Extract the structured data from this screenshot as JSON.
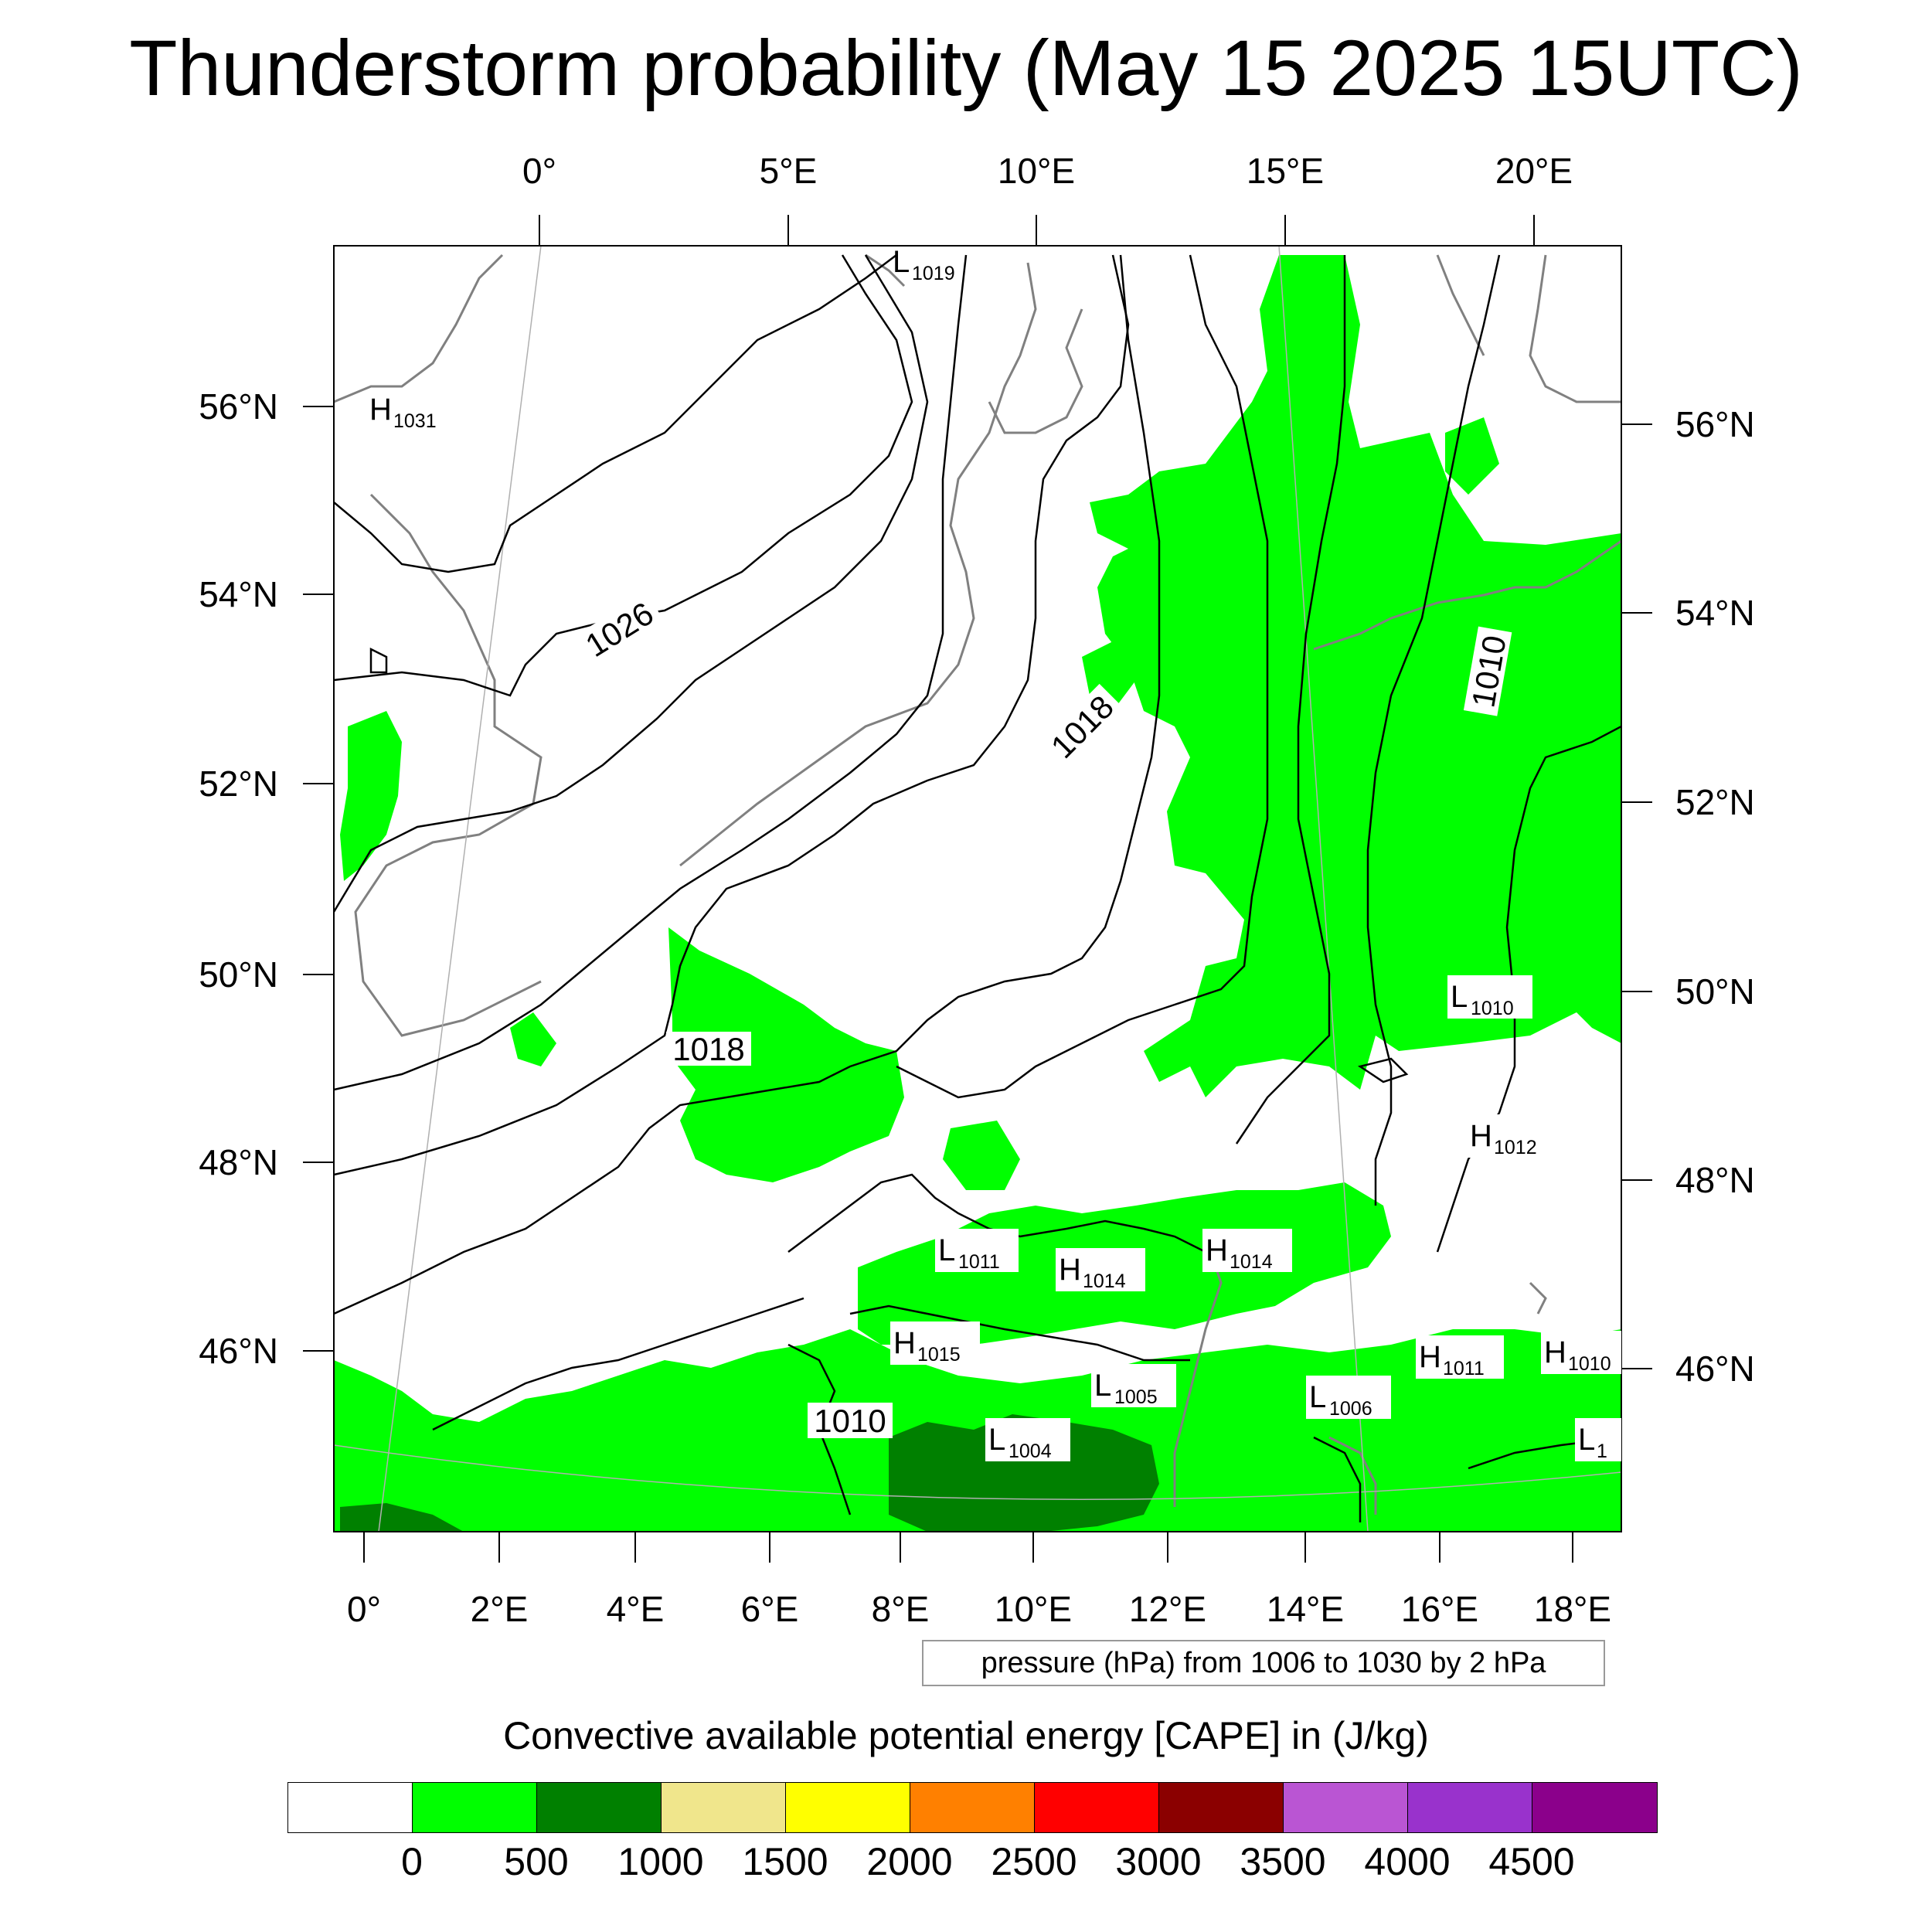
{
  "title": "Thunderstorm probability (May 15 2025 15UTC)",
  "top_lon_labels": [
    "0°",
    "5°E",
    "10°E",
    "15°E",
    "20°E"
  ],
  "bottom_lon_labels": [
    "0°",
    "2°E",
    "4°E",
    "6°E",
    "8°E",
    "10°E",
    "12°E",
    "14°E",
    "16°E",
    "18°E"
  ],
  "left_lat_labels": [
    "56°N",
    "54°N",
    "52°N",
    "50°N",
    "48°N",
    "46°N"
  ],
  "right_lat_labels": [
    "56°N",
    "54°N",
    "52°N",
    "50°N",
    "48°N",
    "46°N"
  ],
  "isobar_labels": [
    "1026",
    "1018",
    "1018",
    "1010",
    "1010"
  ],
  "pressure_centers": [
    {
      "type": "L",
      "value": "1019"
    },
    {
      "type": "H",
      "value": "1031"
    },
    {
      "type": "L",
      "value": "1010"
    },
    {
      "type": "H",
      "value": "1012"
    },
    {
      "type": "L",
      "value": "1011"
    },
    {
      "type": "H",
      "value": "1014"
    },
    {
      "type": "H",
      "value": "1014"
    },
    {
      "type": "H",
      "value": "1015"
    },
    {
      "type": "L",
      "value": "1005"
    },
    {
      "type": "L",
      "value": "1004"
    },
    {
      "type": "L",
      "value": "1006"
    },
    {
      "type": "H",
      "value": "1011"
    },
    {
      "type": "H",
      "value": "1010"
    },
    {
      "type": "L",
      "value": "1"
    }
  ],
  "info_box": "pressure (hPa) from 1006 to 1030 by 2 hPa",
  "colorbar": {
    "title": "Convective available potential energy [CAPE] in (J/kg)",
    "colors": [
      "#ffffff",
      "#00ff00",
      "#008000",
      "#f0e68c",
      "#ffff00",
      "#ff8000",
      "#ff0000",
      "#8b0000",
      "#ba55d3",
      "#9932cc",
      "#8b008b"
    ],
    "labels": [
      "0",
      "500",
      "1000",
      "1500",
      "2000",
      "2500",
      "3000",
      "3500",
      "4000",
      "4500"
    ]
  },
  "colors": {
    "cape_0_500": "#00ff00",
    "cape_500_1000": "#008000",
    "cape_1000_1500": "#f0e68c",
    "coastline": "#808080",
    "isobar": "#000000"
  }
}
